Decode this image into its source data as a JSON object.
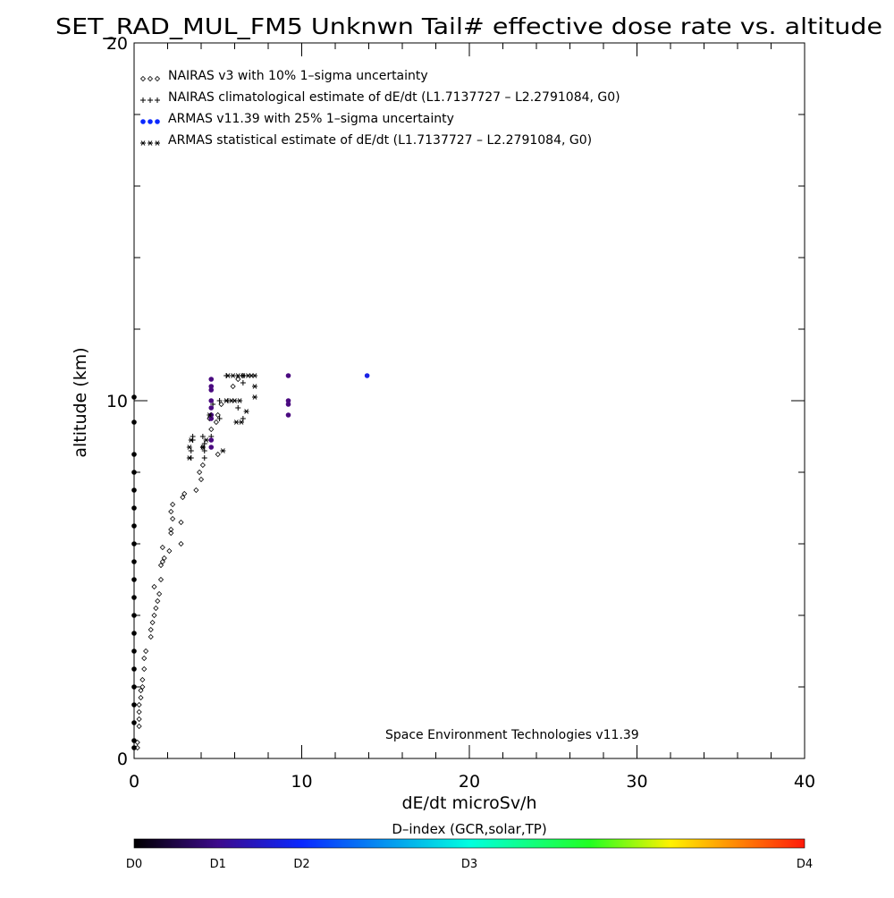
{
  "chart_data": {
    "type": "scatter",
    "title": "SET_RAD_MUL_FM5 Unknwn Tail#  effective dose rate vs. altitude",
    "xlabel": "dE/dt microSv/h",
    "ylabel": "altitude (km)",
    "xlim": [
      0,
      40
    ],
    "ylim": [
      0,
      20
    ],
    "x_ticks": [
      "0",
      "10",
      "20",
      "30",
      "40"
    ],
    "y_ticks": [
      "0",
      "10",
      "20"
    ],
    "grid": false,
    "legend_position": "top-left",
    "annotation": "Space Environment Technologies v11.39",
    "colorbar": {
      "title": "D–index (GCR,solar,TP)",
      "labels": [
        {
          "text": "D0",
          "value": 0.0
        },
        {
          "text": "D1",
          "value": 0.125
        },
        {
          "text": "D2",
          "value": 0.25
        },
        {
          "text": "D3",
          "value": 0.5
        },
        {
          "text": "D4",
          "value": 1.0
        }
      ],
      "stops": [
        {
          "offset": 0.0,
          "color": "#000000"
        },
        {
          "offset": 0.125,
          "color": "#3d0a8c"
        },
        {
          "offset": 0.25,
          "color": "#0a28ff"
        },
        {
          "offset": 0.5,
          "color": "#00ffe0"
        },
        {
          "offset": 0.68,
          "color": "#22ff22"
        },
        {
          "offset": 0.8,
          "color": "#fff200"
        },
        {
          "offset": 1.0,
          "color": "#ff1a0a"
        }
      ]
    },
    "series": [
      {
        "name": "NAIRAS v3 with 10% 1–sigma uncertainty",
        "marker": "diamond",
        "color": "#000000",
        "points": [
          [
            0.2,
            0.3
          ],
          [
            0.2,
            0.45
          ],
          [
            0.3,
            0.9
          ],
          [
            0.3,
            1.1
          ],
          [
            0.3,
            1.3
          ],
          [
            0.3,
            1.5
          ],
          [
            0.4,
            1.7
          ],
          [
            0.4,
            1.9
          ],
          [
            0.5,
            2.0
          ],
          [
            0.5,
            2.2
          ],
          [
            0.6,
            2.5
          ],
          [
            0.6,
            2.8
          ],
          [
            0.7,
            3.0
          ],
          [
            1.0,
            3.4
          ],
          [
            1.0,
            3.6
          ],
          [
            1.1,
            3.8
          ],
          [
            1.2,
            4.0
          ],
          [
            1.3,
            4.2
          ],
          [
            1.4,
            4.4
          ],
          [
            1.5,
            4.6
          ],
          [
            1.2,
            4.8
          ],
          [
            1.6,
            5.0
          ],
          [
            1.6,
            5.4
          ],
          [
            1.7,
            5.5
          ],
          [
            1.8,
            5.6
          ],
          [
            2.1,
            5.8
          ],
          [
            1.7,
            5.9
          ],
          [
            2.8,
            6.0
          ],
          [
            2.2,
            6.3
          ],
          [
            2.2,
            6.4
          ],
          [
            2.8,
            6.6
          ],
          [
            2.3,
            6.7
          ],
          [
            2.2,
            6.9
          ],
          [
            2.3,
            7.1
          ],
          [
            2.9,
            7.3
          ],
          [
            3.0,
            7.4
          ],
          [
            3.7,
            7.5
          ],
          [
            4.0,
            7.8
          ],
          [
            3.9,
            8.0
          ],
          [
            4.1,
            8.2
          ],
          [
            4.6,
            9.2
          ],
          [
            4.9,
            9.4
          ],
          [
            4.5,
            9.5
          ],
          [
            5.0,
            9.6
          ],
          [
            5.2,
            9.9
          ],
          [
            5.9,
            10.4
          ],
          [
            6.2,
            10.6
          ],
          [
            6.5,
            10.7
          ],
          [
            4.1,
            8.7
          ],
          [
            5.0,
            8.5
          ]
        ]
      },
      {
        "name": "NAIRAS climatological estimate of dE/dt (L1.7137727 – L2.2791084, G0)",
        "marker": "plus",
        "color": "#000000",
        "points": [
          [
            3.4,
            8.4
          ],
          [
            3.4,
            8.6
          ],
          [
            3.5,
            8.9
          ],
          [
            3.5,
            9.0
          ],
          [
            4.2,
            8.4
          ],
          [
            4.2,
            8.6
          ],
          [
            4.2,
            8.8
          ],
          [
            4.1,
            9.0
          ],
          [
            4.6,
            9.0
          ],
          [
            5.1,
            9.5
          ],
          [
            4.6,
            9.6
          ],
          [
            4.7,
            9.9
          ],
          [
            5.1,
            10.0
          ],
          [
            5.6,
            10.0
          ],
          [
            6.5,
            9.5
          ],
          [
            6.2,
            9.8
          ],
          [
            5.5,
            10.7
          ],
          [
            6.5,
            10.5
          ]
        ]
      },
      {
        "name": "ARMAS v11.39 with 25% 1–sigma uncertainty",
        "marker": "dot",
        "color": "#0a28ff",
        "points": [
          [
            0.0,
            0.3
          ],
          [
            0.0,
            0.5
          ],
          [
            0.0,
            1.0
          ],
          [
            0.0,
            1.5
          ],
          [
            0.0,
            2.0
          ],
          [
            0.0,
            2.5
          ],
          [
            0.0,
            3.0
          ],
          [
            0.0,
            3.5
          ],
          [
            0.0,
            4.0
          ],
          [
            0.0,
            4.5
          ],
          [
            0.0,
            5.0
          ],
          [
            0.0,
            5.5
          ],
          [
            0.0,
            6.0
          ],
          [
            0.0,
            6.5
          ],
          [
            0.0,
            7.0
          ],
          [
            0.0,
            7.5
          ],
          [
            0.0,
            8.0
          ],
          [
            0.0,
            8.5
          ],
          [
            0.0,
            9.4
          ],
          [
            0.0,
            10.1
          ],
          [
            4.6,
            9.5
          ],
          [
            4.6,
            9.6
          ],
          [
            4.6,
            9.8
          ],
          [
            4.6,
            10.0
          ],
          [
            4.6,
            10.3
          ],
          [
            4.6,
            10.4
          ],
          [
            4.6,
            10.6
          ],
          [
            4.6,
            8.9
          ],
          [
            4.6,
            8.7
          ],
          [
            9.2,
            9.6
          ],
          [
            9.2,
            9.9
          ],
          [
            9.2,
            10.0
          ],
          [
            9.2,
            10.7
          ],
          [
            13.9,
            10.7
          ]
        ]
      },
      {
        "name": "ARMAS statistical estimate of dE/dt (L1.7137727 – L2.2791084, G0)",
        "marker": "asterisk",
        "color": "#000000",
        "points": [
          [
            3.3,
            8.4
          ],
          [
            3.3,
            8.7
          ],
          [
            3.4,
            8.9
          ],
          [
            4.1,
            8.7
          ],
          [
            4.3,
            8.9
          ],
          [
            5.3,
            8.6
          ],
          [
            4.5,
            9.6
          ],
          [
            6.1,
            9.4
          ],
          [
            6.4,
            9.4
          ],
          [
            5.5,
            10.0
          ],
          [
            5.8,
            10.0
          ],
          [
            6.0,
            10.0
          ],
          [
            6.3,
            10.0
          ],
          [
            6.7,
            9.7
          ],
          [
            7.2,
            10.1
          ],
          [
            7.2,
            10.4
          ],
          [
            5.6,
            10.7
          ],
          [
            5.9,
            10.7
          ],
          [
            6.2,
            10.7
          ],
          [
            6.5,
            10.7
          ],
          [
            6.8,
            10.7
          ],
          [
            7.0,
            10.7
          ],
          [
            7.2,
            10.7
          ]
        ]
      }
    ]
  }
}
